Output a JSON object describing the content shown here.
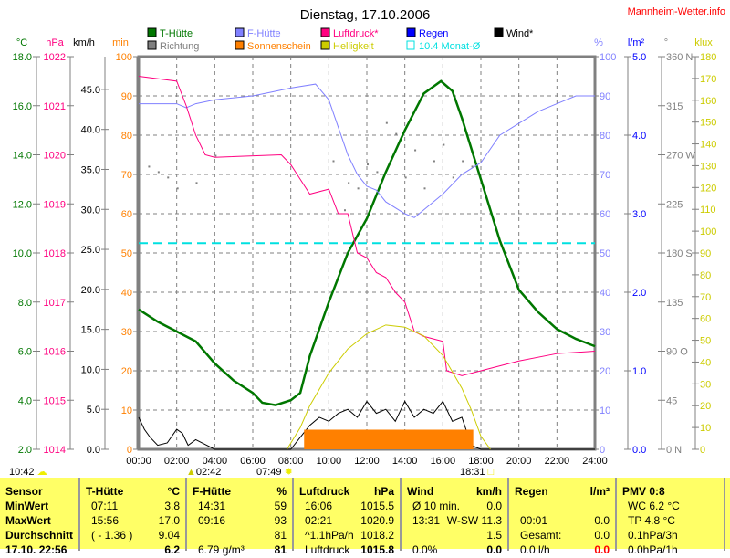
{
  "title": "Dienstag, 17.10.2006",
  "brand": "Mannheim-Wetter.info",
  "axis_units": {
    "temp": "°C",
    "pressure": "hPa",
    "wind": "km/h",
    "sunshine": "min",
    "humidity": "%",
    "rain": "l/m²",
    "direction": "°",
    "light": "klux"
  },
  "legend": [
    {
      "label": "T-Hütte",
      "color": "#007700"
    },
    {
      "label": "F-Hütte",
      "color": "#8080ff"
    },
    {
      "label": "Luftdruck*",
      "color": "#ff0080"
    },
    {
      "label": "Regen",
      "color": "#0000ff"
    },
    {
      "label": "Wind*",
      "color": "#000000"
    },
    {
      "label": "Richtung",
      "color": "#808080"
    },
    {
      "label": "Sonnenschein",
      "color": "#ff8000"
    },
    {
      "label": "Helligkeit",
      "color": "#cccc00"
    },
    {
      "label": "10.4 Monat-Ø",
      "color": "#00e0e0"
    }
  ],
  "chart_data": {
    "type": "line",
    "title": "Dienstag, 17.10.2006",
    "x_ticks": [
      "00:00",
      "02:00",
      "04:00",
      "06:00",
      "08:00",
      "10:00",
      "12:00",
      "14:00",
      "16:00",
      "18:00",
      "20:00",
      "22:00",
      "24:00"
    ],
    "xlim": [
      0,
      24
    ],
    "axes": {
      "temp": {
        "lim": [
          2,
          18
        ],
        "ticks": [
          "2.0",
          "4.0",
          "6.0",
          "8.0",
          "10.0",
          "12.0",
          "14.0",
          "16.0",
          "18.0"
        ]
      },
      "pressure": {
        "lim": [
          1014,
          1022
        ],
        "ticks": [
          "1014",
          "1015",
          "1016",
          "1017",
          "1018",
          "1019",
          "1020",
          "1021",
          "1022"
        ]
      },
      "wind": {
        "lim": [
          0,
          49.1
        ],
        "ticks": [
          "0.0",
          "5.0",
          "10.0",
          "15.0",
          "20.0",
          "25.0",
          "30.0",
          "35.0",
          "40.0",
          "45.0"
        ]
      },
      "sunshine": {
        "lim": [
          0,
          100
        ],
        "ticks": [
          "0",
          "10",
          "20",
          "30",
          "40",
          "50",
          "60",
          "70",
          "80",
          "90",
          "100"
        ]
      },
      "humidity": {
        "lim": [
          0,
          100
        ],
        "ticks": [
          "0",
          "10",
          "20",
          "30",
          "40",
          "50",
          "60",
          "70",
          "80",
          "90",
          "100"
        ]
      },
      "rain": {
        "lim": [
          0,
          5
        ],
        "ticks": [
          "0.0",
          "1.0",
          "2.0",
          "3.0",
          "4.0",
          "5.0"
        ]
      },
      "direction": {
        "lim": [
          0,
          360
        ],
        "ticks": [
          "0   N",
          "45",
          "90  O",
          "135",
          "180 S",
          "225",
          "270 W",
          "315",
          "360 N"
        ]
      },
      "light": {
        "lim": [
          0,
          180
        ],
        "ticks": [
          "0",
          "10",
          "20",
          "30",
          "40",
          "50",
          "60",
          "70",
          "80",
          "90",
          "100",
          "110",
          "120",
          "130",
          "140",
          "150",
          "160",
          "170",
          "180"
        ]
      }
    },
    "series": [
      {
        "name": "T-Hütte",
        "axis": "temp",
        "color": "#007700",
        "x": [
          0,
          1,
          2,
          2.5,
          3,
          4,
          5,
          6,
          6.5,
          7.2,
          8,
          8.5,
          9,
          10,
          11,
          12,
          13,
          14,
          15,
          15.9,
          16.5,
          17,
          18,
          19,
          20,
          21,
          22,
          23,
          24
        ],
        "y": [
          7.7,
          7.2,
          6.8,
          6.6,
          6.4,
          5.5,
          4.8,
          4.3,
          3.9,
          3.8,
          4.0,
          4.3,
          5.8,
          8.0,
          10.0,
          11.4,
          13.3,
          15.0,
          16.5,
          17.0,
          16.6,
          15.5,
          13.0,
          10.5,
          8.5,
          7.6,
          6.9,
          6.5,
          6.2
        ]
      },
      {
        "name": "F-Hütte",
        "axis": "humidity",
        "color": "#8080ff",
        "x": [
          0,
          2,
          2.5,
          3,
          4,
          6,
          7,
          8,
          9.3,
          10,
          10.5,
          11,
          11.5,
          12,
          12.5,
          13,
          14,
          14.5,
          15,
          16,
          17,
          18,
          19,
          20,
          21,
          22,
          23,
          24
        ],
        "y": [
          88,
          88,
          87,
          88,
          89,
          90,
          91,
          92,
          93,
          89,
          82,
          75,
          70,
          67,
          66,
          63,
          60,
          59,
          61,
          65,
          70,
          73,
          80,
          83,
          86,
          88,
          90,
          90
        ]
      },
      {
        "name": "Luftdruck*",
        "axis": "pressure",
        "color": "#ff0080",
        "x": [
          0,
          2,
          2.5,
          3,
          3.5,
          4,
          7.5,
          8,
          8.5,
          9,
          10,
          10.5,
          11,
          11.5,
          12,
          12.5,
          13,
          13.5,
          14,
          14.5,
          15,
          16,
          16.2,
          17,
          18,
          20,
          22,
          24
        ],
        "y": [
          1021.6,
          1021.5,
          1021.0,
          1020.4,
          1020.0,
          1019.95,
          1020.0,
          1019.8,
          1019.5,
          1019.2,
          1019.3,
          1018.8,
          1018.8,
          1018.0,
          1017.9,
          1017.6,
          1017.5,
          1017.2,
          1017.0,
          1016.4,
          1016.3,
          1016.2,
          1015.6,
          1015.5,
          1015.6,
          1015.8,
          1015.95,
          1016.0
        ]
      },
      {
        "name": "Wind*",
        "axis": "wind",
        "color": "#000000",
        "x": [
          0,
          0.3,
          0.6,
          1,
          1.5,
          2,
          2.3,
          2.6,
          3,
          4,
          8,
          8.5,
          9,
          9.5,
          10,
          10.5,
          11,
          11.5,
          12,
          12.5,
          13,
          13.5,
          14,
          14.5,
          15,
          15.5,
          16,
          16.5,
          17,
          17.5,
          18,
          24
        ],
        "y": [
          4,
          2.5,
          1.5,
          0.5,
          0.8,
          2.5,
          2,
          0.5,
          1.2,
          0,
          0,
          1.5,
          3,
          4,
          3.5,
          4.5,
          5,
          4,
          6,
          4.5,
          5,
          3.5,
          6,
          4,
          5,
          4.5,
          6,
          3.5,
          4,
          0.5,
          0,
          0
        ]
      },
      {
        "name": "Helligkeit",
        "axis": "light",
        "color": "#cccc00",
        "x": [
          7.8,
          8.5,
          9,
          10,
          11,
          12,
          13,
          14,
          15,
          16,
          17,
          17.5,
          18,
          18.5
        ],
        "y": [
          0,
          10,
          20,
          35,
          46,
          53,
          57,
          56,
          52,
          43,
          28,
          18,
          6,
          0
        ]
      },
      {
        "name": "Sonnenschein",
        "axis": "sunshine",
        "color": "#ff8000",
        "type": "area",
        "x": [
          8.7,
          17.6
        ],
        "y": [
          5,
          5
        ]
      },
      {
        "name": "10.4 Monat-Ø",
        "axis": "temp",
        "color": "#00e0e0",
        "dashed": true,
        "x": [
          0,
          24
        ],
        "y": [
          10.4,
          10.4
        ]
      }
    ],
    "direction_points": {
      "x": [
        0.5,
        1,
        1.5,
        2,
        3,
        4,
        10.2,
        10.8,
        11,
        11.5,
        12,
        12.5,
        13,
        13.5,
        14,
        14.5,
        15,
        15.5,
        16,
        16.5,
        17,
        17.5
      ],
      "y": [
        260,
        255,
        250,
        240,
        245,
        270,
        265,
        220,
        245,
        240,
        262,
        255,
        300,
        290,
        250,
        275,
        240,
        265,
        280,
        250,
        265,
        260
      ]
    }
  },
  "sun_events": {
    "now": "10:42",
    "moon": "02:42",
    "sunrise": "07:49",
    "sunset": "18:31"
  },
  "table": {
    "columns": [
      {
        "header": "Sensor",
        "unit": "",
        "rows": [
          "MinWert",
          "MaxWert",
          "Durchschnitt",
          "17.10. 22:56"
        ],
        "right": [
          "",
          "",
          "",
          ""
        ]
      },
      {
        "header": "T-Hütte",
        "unit": "°C",
        "rows": [
          "07:11",
          "15:56",
          "( - 1.36 )",
          ""
        ],
        "right": [
          "3.8",
          "17.0",
          "9.04",
          "6.2"
        ]
      },
      {
        "header": "F-Hütte",
        "unit": "%",
        "rows": [
          "14:31",
          "09:16",
          "",
          "6.79 g/m³"
        ],
        "right": [
          "59",
          "93",
          "81",
          "81"
        ]
      },
      {
        "header": "Luftdruck",
        "unit": "hPa",
        "rows": [
          "16:06",
          "02:21",
          "^1.1hPa/h",
          "Luftdruck"
        ],
        "right": [
          "1015.5",
          "1020.9",
          "1018.2",
          "1015.8"
        ]
      },
      {
        "header": "Wind",
        "unit": "km/h",
        "rows": [
          "Ø 10 min.",
          "13:31",
          "",
          "0.0%"
        ],
        "right": [
          "0.0",
          "W-SW 11.3",
          "1.5",
          "0.0"
        ]
      },
      {
        "header": "Regen",
        "unit": "l/m²",
        "rows": [
          "",
          "00:01",
          "Gesamt:",
          "0.0 l/h"
        ],
        "right": [
          "",
          "0.0",
          "0.0",
          "0.0"
        ]
      },
      {
        "header": "PMV 0:8",
        "unit": "",
        "rows": [
          "WC 6.2 °C",
          "TP 4.8 °C",
          "0.1hPa/3h",
          "0.0hPa/1h"
        ],
        "right": [
          "",
          "",
          "",
          ""
        ]
      }
    ]
  }
}
